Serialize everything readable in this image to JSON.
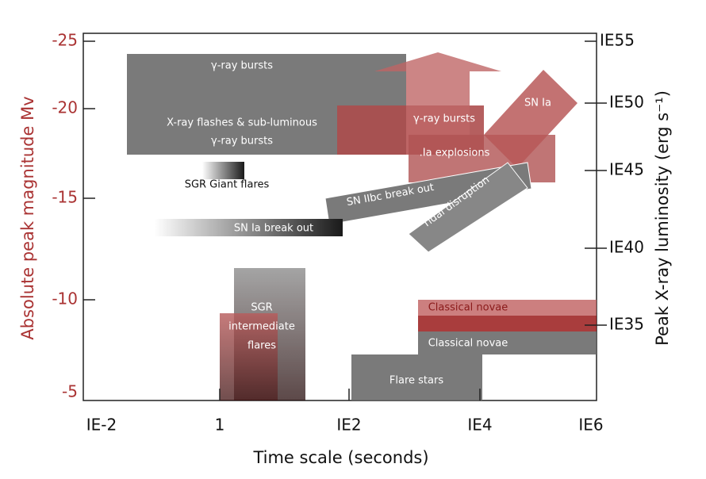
{
  "axes": {
    "x_title": "Time scale (seconds)",
    "y_left_title": "Absolute peak magnitude Mv",
    "y_right_title": "Peak X-ray luminosity (erg s⁻¹)",
    "x_ticks": [
      "IE-2",
      "1",
      "IE2",
      "IE4",
      "IE6"
    ],
    "y_left_ticks": [
      "-25",
      "-20",
      "-15",
      "-10",
      "-5"
    ],
    "y_right_ticks": [
      "IE55",
      "IE50",
      "IE45",
      "IE40",
      "IE35"
    ]
  },
  "regions": [
    {
      "lines": [
        "γ-ray bursts"
      ]
    },
    {
      "lines": [
        "X-ray flashes & sub-luminous",
        "γ-ray bursts"
      ]
    },
    {
      "lines": [
        "γ-ray bursts"
      ]
    },
    {
      "lines": [
        ".Ia explosions"
      ]
    },
    {
      "lines": [
        "SN Ia"
      ]
    },
    {
      "lines": [
        "SGR Giant flares"
      ]
    },
    {
      "lines": [
        "SN IIbc break out"
      ]
    },
    {
      "lines": [
        "Tidal disruption"
      ]
    },
    {
      "lines": [
        "SN Ia break out"
      ]
    },
    {
      "lines": [
        "SGR",
        "intermediate",
        "flares"
      ]
    },
    {
      "lines": [
        "Classical novae"
      ]
    },
    {
      "lines": [
        "Classical novae"
      ]
    },
    {
      "lines": [
        "Flare stars"
      ]
    }
  ]
}
